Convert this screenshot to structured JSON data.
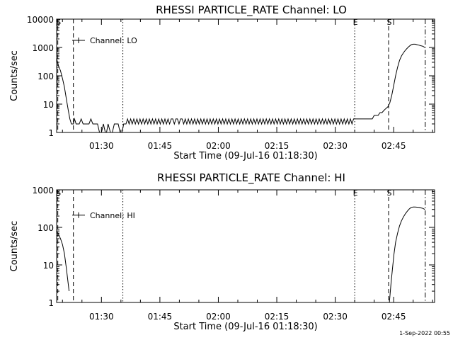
{
  "footer_timestamp": "1-Sep-2022 00:55",
  "chart_data": [
    {
      "type": "line",
      "title": "RHESSI PARTICLE_RATE Channel: LO",
      "xlabel": "Start Time (09-Jul-16 01:18:30)",
      "ylabel": "Counts/sec",
      "yscale": "log",
      "ylim": [
        1,
        10000
      ],
      "xlim_minutes": [
        0,
        97
      ],
      "xticks": [
        {
          "min": 11.5,
          "label": "01:30"
        },
        {
          "min": 26.5,
          "label": "01:45"
        },
        {
          "min": 41.5,
          "label": "02:00"
        },
        {
          "min": 56.5,
          "label": "02:15"
        },
        {
          "min": 71.5,
          "label": "02:30"
        },
        {
          "min": 86.5,
          "label": "02:45"
        }
      ],
      "yticks": [
        {
          "value": 1,
          "label": "1"
        },
        {
          "value": 10,
          "label": "10"
        },
        {
          "value": 100,
          "label": "100"
        },
        {
          "value": 1000,
          "label": "1000"
        },
        {
          "value": 10000,
          "label": "10000"
        }
      ],
      "legend": {
        "label": "Channel: LO",
        "position": "top-left"
      },
      "markers": [
        {
          "min": 0.3,
          "style": "dashed",
          "label": "S"
        },
        {
          "min": 4.3,
          "style": "dashed",
          "label": ""
        },
        {
          "min": 17.0,
          "style": "dotted",
          "label": ""
        },
        {
          "min": 76.5,
          "style": "dotted",
          "label": "E"
        },
        {
          "min": 85.2,
          "style": "dashed",
          "label": "S"
        },
        {
          "min": 94.6,
          "style": "dashdot",
          "label": ""
        }
      ],
      "series": [
        {
          "values": [
            [
              0,
              400
            ],
            [
              0.5,
              220
            ],
            [
              1,
              150
            ],
            [
              1.5,
              80
            ],
            [
              2,
              40
            ],
            [
              2.5,
              15
            ],
            [
              3,
              6
            ],
            [
              3.4,
              3
            ],
            [
              3.8,
              2
            ],
            [
              4.3,
              2
            ],
            [
              4.6,
              3
            ],
            [
              5,
              2
            ],
            [
              5.8,
              2
            ],
            [
              6.3,
              3
            ],
            [
              6.8,
              2
            ],
            [
              7.8,
              2
            ],
            [
              8.3,
              2
            ],
            [
              8.8,
              3
            ],
            [
              9.3,
              2
            ],
            [
              10.5,
              2
            ],
            [
              11,
              1
            ],
            [
              11.5,
              1
            ],
            [
              12,
              2
            ],
            [
              12.5,
              1
            ],
            [
              12.8,
              1
            ],
            [
              13.2,
              2
            ],
            [
              13.8,
              1
            ],
            [
              14.3,
              1
            ],
            [
              14.8,
              2
            ],
            [
              15.8,
              2
            ],
            [
              16.3,
              1
            ],
            [
              16.8,
              1
            ],
            [
              17.2,
              2
            ],
            [
              17.8,
              2
            ],
            [
              18.2,
              3
            ],
            [
              18.6,
              2
            ],
            [
              19,
              3
            ],
            [
              19.4,
              2
            ],
            [
              19.8,
              3
            ],
            [
              20.2,
              2
            ],
            [
              20.6,
              3
            ],
            [
              21,
              2
            ],
            [
              21.4,
              3
            ],
            [
              21.8,
              2
            ],
            [
              22.2,
              3
            ],
            [
              22.6,
              2
            ],
            [
              23,
              3
            ],
            [
              23.4,
              2
            ],
            [
              23.8,
              3
            ],
            [
              24.2,
              2
            ],
            [
              24.6,
              3
            ],
            [
              25,
              2
            ],
            [
              25.4,
              3
            ],
            [
              25.8,
              2
            ],
            [
              26.2,
              3
            ],
            [
              26.6,
              2
            ],
            [
              27,
              3
            ],
            [
              27.4,
              2
            ],
            [
              27.8,
              3
            ],
            [
              28.2,
              2
            ],
            [
              28.6,
              3
            ],
            [
              29,
              2
            ],
            [
              29.4,
              3
            ],
            [
              29.8,
              3
            ],
            [
              30.2,
              2
            ],
            [
              30.6,
              3
            ],
            [
              31,
              3
            ],
            [
              31.4,
              2
            ],
            [
              31.8,
              3
            ],
            [
              32.2,
              3
            ],
            [
              32.6,
              2
            ],
            [
              33,
              3
            ],
            [
              33.4,
              2
            ],
            [
              33.8,
              3
            ],
            [
              34.2,
              2
            ],
            [
              34.6,
              3
            ],
            [
              35,
              2
            ],
            [
              35.4,
              3
            ],
            [
              35.8,
              2
            ],
            [
              36.2,
              3
            ],
            [
              36.6,
              2
            ],
            [
              37,
              3
            ],
            [
              37.4,
              2
            ],
            [
              37.8,
              3
            ],
            [
              38.2,
              2
            ],
            [
              38.6,
              3
            ],
            [
              39,
              2
            ],
            [
              39.4,
              3
            ],
            [
              39.8,
              2
            ],
            [
              40.2,
              3
            ],
            [
              40.6,
              2
            ],
            [
              41,
              3
            ],
            [
              41.4,
              2
            ],
            [
              41.8,
              3
            ],
            [
              42.2,
              2
            ],
            [
              42.6,
              3
            ],
            [
              43,
              2
            ],
            [
              43.4,
              3
            ],
            [
              43.8,
              2
            ],
            [
              44.2,
              3
            ],
            [
              44.6,
              2
            ],
            [
              45,
              3
            ],
            [
              45.4,
              2
            ],
            [
              45.8,
              3
            ],
            [
              46.2,
              2
            ],
            [
              46.6,
              3
            ],
            [
              47,
              2
            ],
            [
              47.4,
              3
            ],
            [
              47.8,
              2
            ],
            [
              48.2,
              3
            ],
            [
              48.6,
              2
            ],
            [
              49,
              3
            ],
            [
              49.4,
              2
            ],
            [
              49.8,
              3
            ],
            [
              50.2,
              2
            ],
            [
              50.6,
              3
            ],
            [
              51,
              2
            ],
            [
              51.4,
              3
            ],
            [
              51.8,
              2
            ],
            [
              52.2,
              3
            ],
            [
              52.6,
              2
            ],
            [
              53,
              3
            ],
            [
              53.4,
              2
            ],
            [
              53.8,
              3
            ],
            [
              54.2,
              2
            ],
            [
              54.6,
              3
            ],
            [
              55,
              2
            ],
            [
              55.4,
              3
            ],
            [
              55.8,
              2
            ],
            [
              56.2,
              3
            ],
            [
              56.6,
              2
            ],
            [
              57,
              3
            ],
            [
              57.4,
              2
            ],
            [
              57.8,
              3
            ],
            [
              58.2,
              2
            ],
            [
              58.6,
              3
            ],
            [
              59,
              2
            ],
            [
              59.4,
              3
            ],
            [
              59.8,
              2
            ],
            [
              60.2,
              3
            ],
            [
              60.6,
              2
            ],
            [
              61,
              3
            ],
            [
              61.4,
              2
            ],
            [
              61.8,
              3
            ],
            [
              62.2,
              2
            ],
            [
              62.6,
              3
            ],
            [
              63,
              2
            ],
            [
              63.4,
              3
            ],
            [
              63.8,
              2
            ],
            [
              64.2,
              3
            ],
            [
              64.6,
              2
            ],
            [
              65,
              3
            ],
            [
              65.4,
              2
            ],
            [
              65.8,
              3
            ],
            [
              66.2,
              2
            ],
            [
              66.6,
              3
            ],
            [
              67,
              2
            ],
            [
              67.4,
              3
            ],
            [
              67.8,
              2
            ],
            [
              68.2,
              3
            ],
            [
              68.6,
              2
            ],
            [
              69,
              3
            ],
            [
              69.4,
              2
            ],
            [
              69.8,
              3
            ],
            [
              70.2,
              2
            ],
            [
              70.6,
              3
            ],
            [
              71,
              2
            ],
            [
              71.4,
              3
            ],
            [
              71.8,
              2
            ],
            [
              72.2,
              3
            ],
            [
              72.6,
              2
            ],
            [
              73,
              3
            ],
            [
              73.4,
              2
            ],
            [
              73.8,
              3
            ],
            [
              74.2,
              2
            ],
            [
              74.6,
              3
            ],
            [
              75,
              2
            ],
            [
              75.4,
              3
            ],
            [
              75.8,
              2
            ],
            [
              76.2,
              3
            ],
            [
              76.6,
              3
            ],
            [
              77,
              3
            ],
            [
              78,
              3
            ],
            [
              79,
              3
            ],
            [
              80,
              3
            ],
            [
              81,
              3
            ],
            [
              81.5,
              4
            ],
            [
              82,
              4
            ],
            [
              82.5,
              4
            ],
            [
              83,
              5
            ],
            [
              83.5,
              5
            ],
            [
              84,
              6
            ],
            [
              84.5,
              7
            ],
            [
              85,
              8
            ],
            [
              85.5,
              11
            ],
            [
              86,
              20
            ],
            [
              86.5,
              45
            ],
            [
              87,
              100
            ],
            [
              87.5,
              200
            ],
            [
              88,
              350
            ],
            [
              88.5,
              500
            ],
            [
              89,
              650
            ],
            [
              89.5,
              800
            ],
            [
              90,
              950
            ],
            [
              90.5,
              1100
            ],
            [
              91,
              1250
            ],
            [
              91.5,
              1300
            ],
            [
              92,
              1300
            ],
            [
              92.5,
              1250
            ],
            [
              93,
              1200
            ],
            [
              93.5,
              1150
            ],
            [
              94,
              1100
            ],
            [
              94.5,
              1000
            ]
          ]
        }
      ]
    },
    {
      "type": "line",
      "title": "RHESSI PARTICLE_RATE Channel: HI",
      "xlabel": "Start Time (09-Jul-16 01:18:30)",
      "ylabel": "Counts/sec",
      "yscale": "log",
      "ylim": [
        1,
        1000
      ],
      "xlim_minutes": [
        0,
        97
      ],
      "xticks": [
        {
          "min": 11.5,
          "label": "01:30"
        },
        {
          "min": 26.5,
          "label": "01:45"
        },
        {
          "min": 41.5,
          "label": "02:00"
        },
        {
          "min": 56.5,
          "label": "02:15"
        },
        {
          "min": 71.5,
          "label": "02:30"
        },
        {
          "min": 86.5,
          "label": "02:45"
        }
      ],
      "yticks": [
        {
          "value": 1,
          "label": "1"
        },
        {
          "value": 10,
          "label": "10"
        },
        {
          "value": 100,
          "label": "100"
        },
        {
          "value": 1000,
          "label": "1000"
        }
      ],
      "legend": {
        "label": "Channel: HI",
        "position": "top-left"
      },
      "markers": [
        {
          "min": 0.3,
          "style": "dashed",
          "label": "S"
        },
        {
          "min": 4.3,
          "style": "dashed",
          "label": ""
        },
        {
          "min": 17.0,
          "style": "dotted",
          "label": ""
        },
        {
          "min": 76.5,
          "style": "dotted",
          "label": "E"
        },
        {
          "min": 85.2,
          "style": "dashed",
          "label": "S"
        },
        {
          "min": 94.6,
          "style": "dashdot",
          "label": ""
        }
      ],
      "series": [
        {
          "values": [
            [
              0,
              80
            ],
            [
              0.5,
              65
            ],
            [
              1,
              50
            ],
            [
              1.5,
              35
            ],
            [
              2,
              20
            ],
            [
              2.5,
              8
            ],
            [
              3,
              3
            ],
            [
              3.2,
              2
            ]
          ]
        },
        {
          "values": [
            [
              85.4,
              1
            ],
            [
              85.8,
              3
            ],
            [
              86.2,
              8
            ],
            [
              86.6,
              20
            ],
            [
              87,
              40
            ],
            [
              87.5,
              70
            ],
            [
              88,
              110
            ],
            [
              88.5,
              150
            ],
            [
              89,
              190
            ],
            [
              89.5,
              230
            ],
            [
              90,
              270
            ],
            [
              90.5,
              310
            ],
            [
              91,
              340
            ],
            [
              91.5,
              350
            ],
            [
              92,
              350
            ],
            [
              92.5,
              345
            ],
            [
              93,
              340
            ],
            [
              93.5,
              330
            ],
            [
              94,
              320
            ],
            [
              94.5,
              300
            ]
          ]
        }
      ]
    }
  ]
}
